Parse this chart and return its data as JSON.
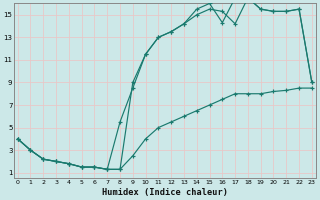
{
  "xlabel": "Humidex (Indice chaleur)",
  "bg_color": "#cce8e8",
  "line_color": "#1a7a6e",
  "grid_color": "#b8d8d8",
  "xlim": [
    -0.3,
    23.3
  ],
  "ylim": [
    0.5,
    16.0
  ],
  "xticks": [
    0,
    1,
    2,
    3,
    4,
    5,
    6,
    7,
    8,
    9,
    10,
    11,
    12,
    13,
    14,
    15,
    16,
    17,
    18,
    19,
    20,
    21,
    22,
    23
  ],
  "yticks": [
    1,
    3,
    5,
    7,
    9,
    11,
    13,
    15
  ],
  "line1_x": [
    0,
    1,
    2,
    3,
    4,
    5,
    6,
    7,
    8,
    9,
    10,
    11,
    12,
    13,
    14,
    15,
    16,
    17,
    18,
    19,
    20,
    21,
    22,
    23
  ],
  "line1_y": [
    4.0,
    3.0,
    2.2,
    2.0,
    1.8,
    1.5,
    1.5,
    1.3,
    1.3,
    9.0,
    11.5,
    13.0,
    13.5,
    14.2,
    15.0,
    15.5,
    15.3,
    14.2,
    16.5,
    15.5,
    15.3,
    15.3,
    15.5,
    9.0
  ],
  "line2_x": [
    0,
    1,
    2,
    3,
    4,
    5,
    6,
    7,
    8,
    9,
    10,
    11,
    12,
    13,
    14,
    15,
    16,
    17,
    18,
    19,
    20,
    21,
    22,
    23
  ],
  "line2_y": [
    4.0,
    3.0,
    2.2,
    2.0,
    1.8,
    1.5,
    1.5,
    1.3,
    5.5,
    8.5,
    11.5,
    13.0,
    13.5,
    14.2,
    15.5,
    16.0,
    14.3,
    16.5,
    16.5,
    15.5,
    15.3,
    15.3,
    15.5,
    9.0
  ],
  "line3_x": [
    0,
    1,
    2,
    3,
    4,
    5,
    6,
    7,
    8,
    9,
    10,
    11,
    12,
    13,
    14,
    15,
    16,
    17,
    18,
    19,
    20,
    21,
    22,
    23
  ],
  "line3_y": [
    4.0,
    3.0,
    2.2,
    2.0,
    1.8,
    1.5,
    1.5,
    1.3,
    1.3,
    2.5,
    4.0,
    5.0,
    5.5,
    6.0,
    6.5,
    7.0,
    7.5,
    8.0,
    8.0,
    8.0,
    8.2,
    8.3,
    8.5,
    8.5
  ]
}
